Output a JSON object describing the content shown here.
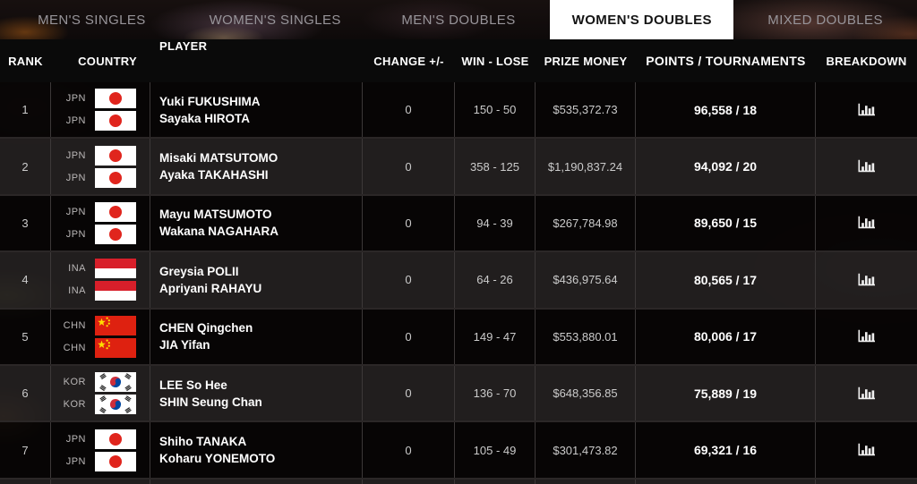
{
  "tabs": [
    {
      "label": "MEN'S SINGLES",
      "active": false
    },
    {
      "label": "WOMEN'S SINGLES",
      "active": false
    },
    {
      "label": "MEN'S DOUBLES",
      "active": false
    },
    {
      "label": "WOMEN'S DOUBLES",
      "active": true
    },
    {
      "label": "MIXED DOUBLES",
      "active": false
    }
  ],
  "table": {
    "headers": [
      "RANK",
      "COUNTRY",
      "PLAYER",
      "CHANGE +/-",
      "WIN - LOSE",
      "PRIZE MONEY",
      "POINTS / TOURNAMENTS",
      "BREAKDOWN"
    ],
    "rows": [
      {
        "rank": "1",
        "countries": [
          "JPN",
          "JPN"
        ],
        "players": [
          "Yuki FUKUSHIMA",
          "Sayaka HIROTA"
        ],
        "change": "0",
        "win_lose": "150 - 50",
        "prize": "$535,372.73",
        "points": "96,558 / 18"
      },
      {
        "rank": "2",
        "countries": [
          "JPN",
          "JPN"
        ],
        "players": [
          "Misaki MATSUTOMO",
          "Ayaka TAKAHASHI"
        ],
        "change": "0",
        "win_lose": "358 - 125",
        "prize": "$1,190,837.24",
        "points": "94,092 / 20"
      },
      {
        "rank": "3",
        "countries": [
          "JPN",
          "JPN"
        ],
        "players": [
          "Mayu MATSUMOTO",
          "Wakana NAGAHARA"
        ],
        "change": "0",
        "win_lose": "94 - 39",
        "prize": "$267,784.98",
        "points": "89,650 / 15"
      },
      {
        "rank": "4",
        "countries": [
          "INA",
          "INA"
        ],
        "players": [
          "Greysia POLII",
          "Apriyani RAHAYU"
        ],
        "change": "0",
        "win_lose": "64 - 26",
        "prize": "$436,975.64",
        "points": "80,565 / 17"
      },
      {
        "rank": "5",
        "countries": [
          "CHN",
          "CHN"
        ],
        "players": [
          "CHEN Qingchen",
          "JIA Yifan"
        ],
        "change": "0",
        "win_lose": "149 - 47",
        "prize": "$553,880.01",
        "points": "80,006 / 17"
      },
      {
        "rank": "6",
        "countries": [
          "KOR",
          "KOR"
        ],
        "players": [
          "LEE So Hee",
          "SHIN Seung Chan"
        ],
        "change": "0",
        "win_lose": "136 - 70",
        "prize": "$648,356.85",
        "points": "75,889 / 19"
      },
      {
        "rank": "7",
        "countries": [
          "JPN",
          "JPN"
        ],
        "players": [
          "Shiho TANAKA",
          "Koharu YONEMOTO"
        ],
        "change": "0",
        "win_lose": "105 - 49",
        "prize": "$301,473.82",
        "points": "69,321 / 16"
      }
    ],
    "breakdown_icon": "bar-chart-icon",
    "partial_row": {
      "visible": true,
      "flag_top_color": "#e0251d"
    }
  },
  "colors": {
    "active_tab_bg": "#ffffff",
    "header_bg": "#0a0a0a",
    "flag_red": "#e0251d",
    "indonesia_red": "#d81f2a",
    "china_red": "#de2110",
    "star_yellow": "#ffde00",
    "korea_red": "#cd2e3a",
    "korea_blue": "#0047a0"
  }
}
